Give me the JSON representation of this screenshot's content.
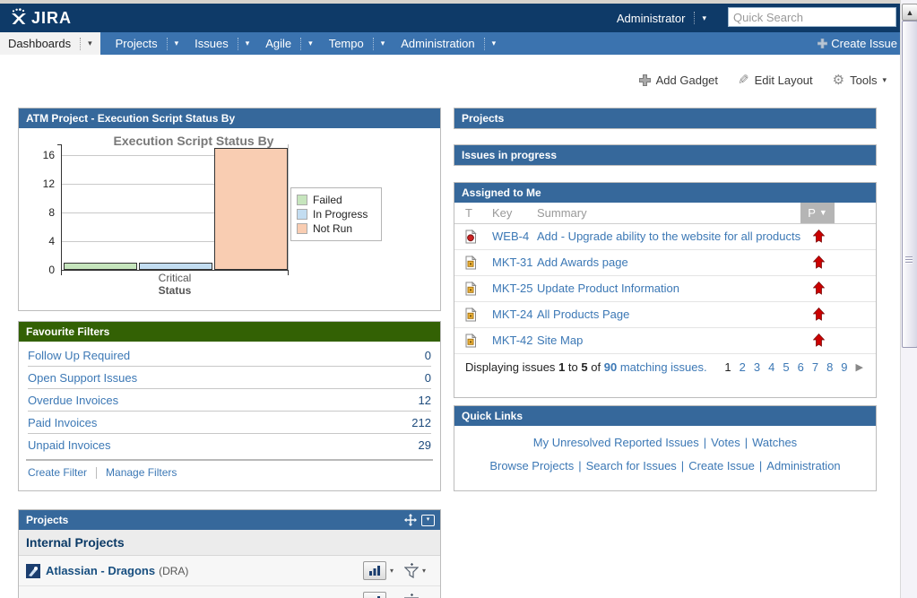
{
  "topbar": {
    "logo_text": "JIRA",
    "user": "Administrator",
    "search_placeholder": "Quick Search"
  },
  "menubar": {
    "active_tab": "Dashboards",
    "items": [
      "Projects",
      "Issues",
      "Agile",
      "Tempo",
      "Administration"
    ],
    "create_issue_label": "Create Issue"
  },
  "toolbar": {
    "add_gadget": "Add Gadget",
    "edit_layout": "Edit Layout",
    "tools": "Tools"
  },
  "chart_gadget": {
    "title": "ATM Project - Execution Script Status By"
  },
  "chart_data": {
    "type": "bar",
    "title": "Execution Script Status By",
    "categories": [
      "Critical"
    ],
    "xlabel": "Status",
    "ylabel": "",
    "ylim": [
      0,
      17.5
    ],
    "yticks": [
      0,
      4,
      8,
      12,
      16
    ],
    "grid": true,
    "legend_position": "right",
    "series": [
      {
        "name": "Failed",
        "values": [
          1
        ],
        "color": "#c6e5bd"
      },
      {
        "name": "In Progress",
        "values": [
          1
        ],
        "color": "#c3ddf1"
      },
      {
        "name": "Not Run",
        "values": [
          17
        ],
        "color": "#f9cdb2"
      }
    ]
  },
  "filters": {
    "title": "Favourite Filters",
    "rows": [
      {
        "label": "Follow Up Required",
        "count": "0"
      },
      {
        "label": "Open Support Issues",
        "count": "0"
      },
      {
        "label": "Overdue Invoices",
        "count": "12"
      },
      {
        "label": "Paid Invoices",
        "count": "212"
      },
      {
        "label": "Unpaid Invoices",
        "count": "29"
      }
    ],
    "footer_links": [
      "Create Filter",
      "Manage Filters"
    ]
  },
  "projects_gadget": {
    "title": "Projects",
    "section": "Internal Projects",
    "rows": [
      {
        "name": "Atlassian - Dragons",
        "key": "(DRA)"
      }
    ]
  },
  "right_collapsed": {
    "projects": "Projects",
    "issues_in_progress": "Issues in progress"
  },
  "assigned": {
    "title": "Assigned to Me",
    "columns": {
      "t": "T",
      "key": "Key",
      "summary": "Summary",
      "p": "P"
    },
    "rows": [
      {
        "type": "new-feature",
        "key": "WEB-4",
        "summary": "Add - Upgrade ability to the website for all products",
        "priority": "critical"
      },
      {
        "type": "task",
        "key": "MKT-31",
        "summary": "Add Awards page",
        "priority": "critical"
      },
      {
        "type": "task",
        "key": "MKT-25",
        "summary": "Update Product Information",
        "priority": "critical"
      },
      {
        "type": "task",
        "key": "MKT-24",
        "summary": "All Products Page",
        "priority": "critical"
      },
      {
        "type": "task",
        "key": "MKT-42",
        "summary": "Site Map",
        "priority": "critical"
      }
    ],
    "footer": {
      "prefix": "Displaying issues",
      "from": "1",
      "mid1": "to",
      "to": "5",
      "mid2": "of",
      "total": "90",
      "suffix": "matching issues."
    },
    "pagination": {
      "pages": [
        "1",
        "2",
        "3",
        "4",
        "5",
        "6",
        "7",
        "8",
        "9"
      ],
      "current": "1"
    }
  },
  "quick_links": {
    "title": "Quick Links",
    "separator": "|",
    "line1": [
      "My Unresolved Reported Issues",
      "Votes",
      "Watches"
    ],
    "line2": [
      "Browse Projects",
      "Search for Issues",
      "Create Issue",
      "Administration"
    ]
  },
  "colors": {
    "topbar": "#0e3a68",
    "menubar": "#3b73af",
    "gadget_header_blue": "#36689b",
    "gadget_header_green": "#336104",
    "link": "#3c78b5",
    "priority_red": "#cc0000"
  }
}
